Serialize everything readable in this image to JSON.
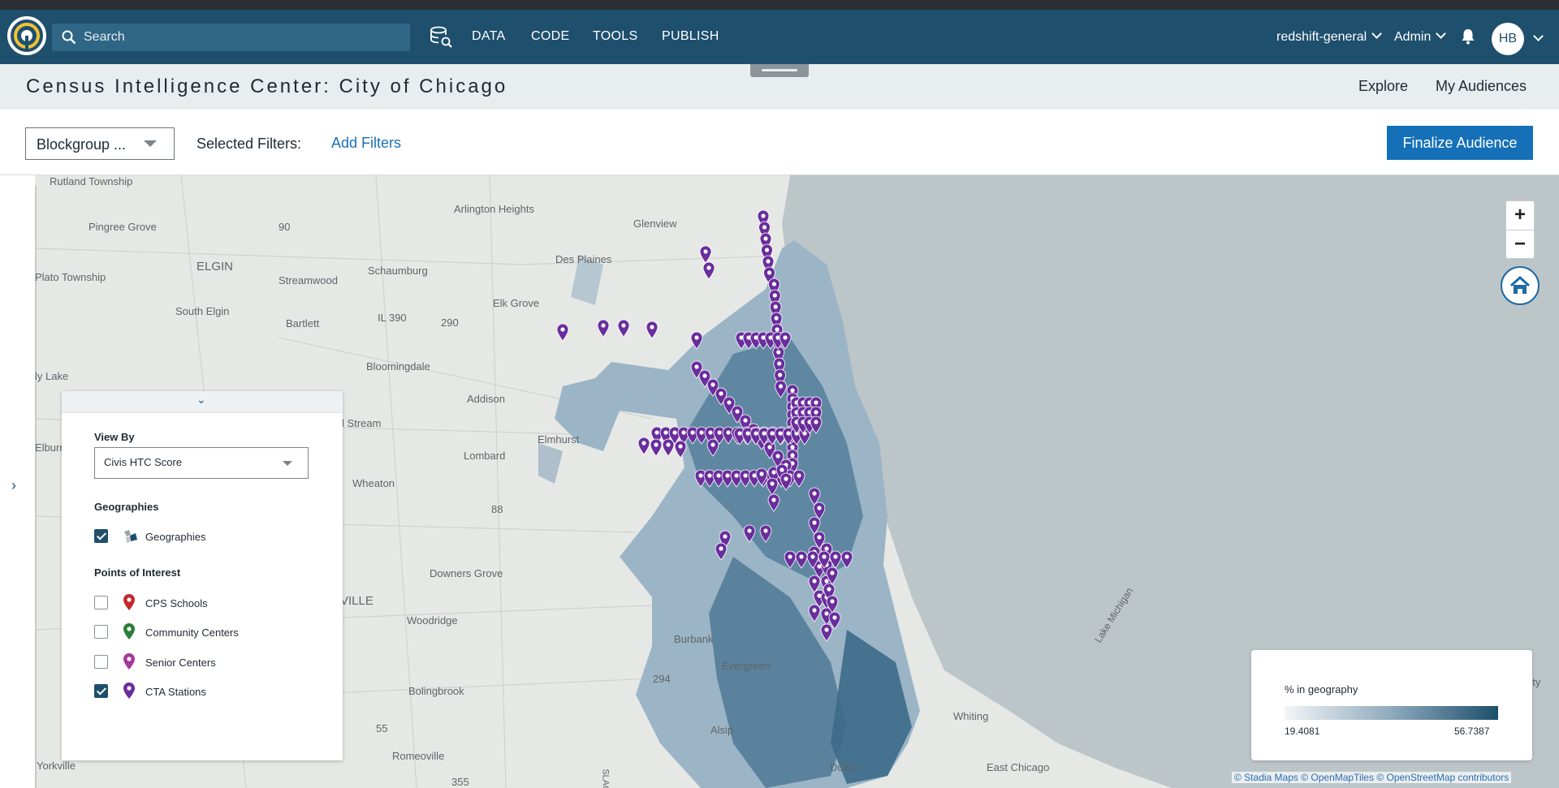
{
  "nav": {
    "search_placeholder": "Search",
    "items": [
      "DATA",
      "CODE",
      "TOOLS",
      "PUBLISH"
    ],
    "workspace": "redshift-general",
    "role": "Admin",
    "avatar_initials": "HB"
  },
  "header": {
    "title": "Census Intelligence Center: City of Chicago",
    "tabs": [
      "Explore",
      "My Audiences"
    ]
  },
  "filters": {
    "geography_select": "Blockgroup ...",
    "selected_label": "Selected Filters:",
    "add_label": "Add Filters",
    "finalize_label": "Finalize Audience"
  },
  "panel": {
    "view_by_label": "View By",
    "view_by_value": "Civis HTC Score",
    "geographies_heading": "Geographies",
    "geographies_option": {
      "label": "Geographies",
      "checked": true
    },
    "poi_heading": "Points of Interest",
    "poi_options": [
      {
        "label": "CPS Schools",
        "checked": false,
        "color": "#c2282e"
      },
      {
        "label": "Community Centers",
        "checked": false,
        "color": "#2e7d3a"
      },
      {
        "label": "Senior Centers",
        "checked": false,
        "color": "#a7379b"
      },
      {
        "label": "CTA Stations",
        "checked": true,
        "color": "#6a2d9c"
      }
    ]
  },
  "legend": {
    "title": "% in geography",
    "min": "19.4081",
    "max": "56.7387",
    "color_low": "#f3f5f7",
    "color_high": "#1d4f6b"
  },
  "map": {
    "attribution": "© Stadia Maps © OpenMapTiles © OpenStreetMap contributors",
    "zoom_in": "+",
    "zoom_out": "−",
    "place_labels": [
      "Rutland Township",
      "Pingree Grove",
      "90",
      "ELGIN",
      "Plato Township",
      "South Elgin",
      "Bartlett",
      "IL 390",
      "290",
      "Streamwood",
      "Schaumburg",
      "Arlington Heights",
      "Glenview",
      "Des Plaines",
      "Elk Grove",
      "Bloomingdale",
      "Addison",
      "Elmhurst",
      "Lombard",
      "Wheaton",
      "88",
      "Downers Grove",
      "Woodridge",
      "Burbank",
      "Evergreen",
      "294",
      "Alsip",
      "Bolingbrook",
      "55",
      "Romeoville",
      "Dolton",
      "East Chicago",
      "Whiting",
      "Lake Michigan",
      "ly Lake",
      "Elburn",
      "Yorkville",
      "VILLE",
      "l Stream",
      "City",
      "355",
      "SLAG"
    ],
    "marker_color": "#6a2d9c"
  }
}
